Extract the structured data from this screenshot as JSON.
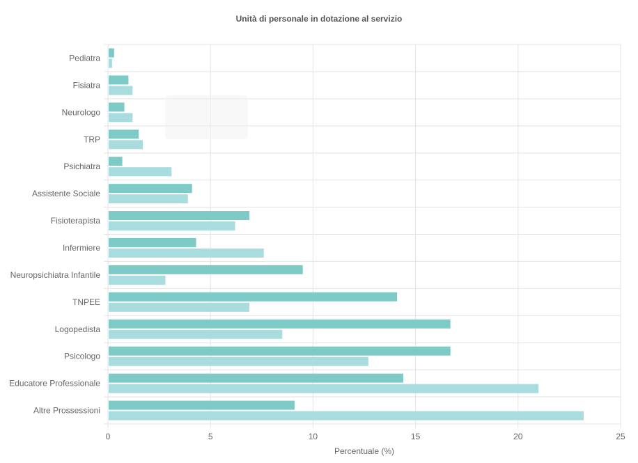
{
  "chart_data": {
    "type": "bar",
    "orientation": "horizontal",
    "title": "Unità di personale in dotazione al servizio",
    "xlabel": "Percentuale (%)",
    "ylabel": "",
    "xlim": [
      0,
      25
    ],
    "xticks": [
      "0",
      "5",
      "10",
      "15",
      "20",
      "25"
    ],
    "grid": true,
    "categories": [
      "Pediatra",
      "Fisiatra",
      "Neurologo",
      "TRP",
      "Psichiatra",
      "Assistente Sociale",
      "Fisioterapista",
      "Infermiere",
      "Neuropsichiatra Infantile",
      "TNPEE",
      "Logopedista",
      "Psicologo",
      "Educatore Professionale",
      "Altre Prossessioni"
    ],
    "series": [
      {
        "color": "#7ecac7",
        "values": [
          0.3,
          1.0,
          0.8,
          1.5,
          0.7,
          4.1,
          6.9,
          4.3,
          9.5,
          14.1,
          16.7,
          16.7,
          14.4,
          9.1
        ]
      },
      {
        "color": "#a8dcdf",
        "values": [
          0.2,
          1.2,
          1.2,
          1.7,
          3.1,
          3.9,
          6.2,
          7.6,
          2.8,
          6.9,
          8.5,
          12.7,
          21.0,
          23.2
        ]
      }
    ]
  }
}
